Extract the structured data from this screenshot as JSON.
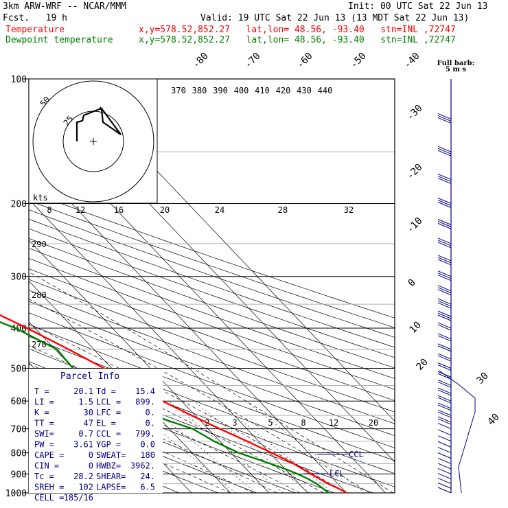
{
  "header": {
    "model": "3km ARW-WRF -- NCAR/MMM",
    "init": "Init: 00 UTC Sat 22 Jun 13",
    "fcst": "Fcst.   19 h",
    "valid": "Valid: 19 UTC Sat 22 Jun 13 (13 MDT Sat 22 Jun 13)",
    "temp_label": "Temperature",
    "dew_label": "Dewpoint temperature",
    "temp_loc": "x,y=578.52,852.27   lat,lon= 48.56, -93.40   stn=INL ,72747",
    "dew_loc": "x,y=578.52,852.27   lat,lon= 48.56, -93.40   stn=INL ,72747"
  },
  "colors": {
    "temperature": "#ff0000",
    "dewpoint": "#008000",
    "wind": "#000080",
    "text": "#000080"
  },
  "chart_data": {
    "type": "skew-t",
    "pressure_ticks": [
      "100",
      "200",
      "300",
      "400",
      "500",
      "600",
      "700",
      "800",
      "900",
      "1000"
    ],
    "isotherm_labels": [
      "-80",
      "-70",
      "-60",
      "-50",
      "-40",
      "-30",
      "-20",
      "-10",
      "0",
      "10",
      "20",
      "30",
      "40"
    ],
    "theta_labels": [
      "370",
      "380",
      "390",
      "400",
      "410",
      "420",
      "430",
      "440"
    ],
    "dry_adiabat_labels": [
      "290",
      "280",
      "270"
    ],
    "mixing_ratio_labels": [
      "2",
      "3",
      "5",
      "8",
      "12",
      "20"
    ],
    "hodograph": {
      "speed_unit": "kts",
      "speed_labels": [
        "8",
        "12",
        "16",
        "20",
        "24",
        "28",
        "32"
      ],
      "ring_labels": [
        "25",
        "50"
      ]
    },
    "full_barb": "Full barb:",
    "full_barb_value": "5 m s",
    "annotations": {
      "ccl": "CCL",
      "lcl": "LCL"
    },
    "temperature": [
      {
        "p": 1000,
        "t": 20.1
      },
      {
        "p": 975,
        "t": 19.0
      },
      {
        "p": 950,
        "t": 17.5
      },
      {
        "p": 925,
        "t": 16.5
      },
      {
        "p": 900,
        "t": 15.5
      },
      {
        "p": 875,
        "t": 14.5
      },
      {
        "p": 850,
        "t": 13.5
      },
      {
        "p": 800,
        "t": 10.5
      },
      {
        "p": 750,
        "t": 7.0
      },
      {
        "p": 700,
        "t": 3.0
      },
      {
        "p": 650,
        "t": -1.0
      },
      {
        "p": 600,
        "t": -5.0
      },
      {
        "p": 550,
        "t": -8.5
      },
      {
        "p": 500,
        "t": -12.0
      },
      {
        "p": 450,
        "t": -16.5
      },
      {
        "p": 400,
        "t": -22.0
      },
      {
        "p": 350,
        "t": -29.0
      },
      {
        "p": 300,
        "t": -37.0
      },
      {
        "p": 250,
        "t": -45.0
      },
      {
        "p": 200,
        "t": -54.0
      },
      {
        "p": 175,
        "t": -55.0
      },
      {
        "p": 150,
        "t": -54.0
      },
      {
        "p": 125,
        "t": -54.0
      },
      {
        "p": 100,
        "t": -47.0
      }
    ],
    "dewpoint": [
      {
        "p": 1000,
        "t": 15.4
      },
      {
        "p": 975,
        "t": 15.0
      },
      {
        "p": 950,
        "t": 14.5
      },
      {
        "p": 925,
        "t": 13.5
      },
      {
        "p": 900,
        "t": 12.0
      },
      {
        "p": 875,
        "t": 10.0
      },
      {
        "p": 850,
        "t": 7.5
      },
      {
        "p": 800,
        "t": 2.0
      },
      {
        "p": 750,
        "t": -1.5
      },
      {
        "p": 700,
        "t": -4.0
      },
      {
        "p": 650,
        "t": -11.0
      },
      {
        "p": 600,
        "t": -17.0
      },
      {
        "p": 550,
        "t": -22.0
      },
      {
        "p": 500,
        "t": -20.0
      },
      {
        "p": 450,
        "t": -19.5
      },
      {
        "p": 400,
        "t": -25.0
      },
      {
        "p": 350,
        "t": -35.0
      },
      {
        "p": 300,
        "t": -45.0
      },
      {
        "p": 250,
        "t": -56.0
      },
      {
        "p": 200,
        "t": -67.0
      },
      {
        "p": 175,
        "t": -77.0
      },
      {
        "p": 150,
        "t": -78.0
      },
      {
        "p": 125,
        "t": -79.0
      },
      {
        "p": 100,
        "t": -79.0
      }
    ]
  },
  "parcel_info": {
    "title": "Parcel Info",
    "rows": [
      {
        "l1": "T  =",
        "v1": "20.1",
        "l2": "Td =",
        "v2": "15.4"
      },
      {
        "l1": "LI =",
        "v1": "1.5",
        "l2": "LCL =",
        "v2": "899."
      },
      {
        "l1": "K  =",
        "v1": "30",
        "l2": "LFC =",
        "v2": "0."
      },
      {
        "l1": "TT =",
        "v1": "47",
        "l2": "EL  =",
        "v2": "0."
      },
      {
        "l1": "SWI=",
        "v1": "0.7",
        "l2": "CCL =",
        "v2": "799."
      },
      {
        "l1": "PW =",
        "v1": "3.61",
        "l2": "YGP =",
        "v2": "0.0"
      },
      {
        "l1": "CAPE =",
        "v1": "0",
        "l2": "SWEAT=",
        "v2": "180"
      },
      {
        "l1": "CIN =",
        "v1": "0",
        "l2": "HWBZ=",
        "v2": "3962."
      },
      {
        "l1": "Tc =",
        "v1": "28.2",
        "l2": "SHEAR=",
        "v2": "24."
      },
      {
        "l1": "SREH =",
        "v1": "102",
        "l2": "LAPSE=",
        "v2": "6.5"
      },
      {
        "l1": "CELL =",
        "v1": "185/16",
        "l2": "",
        "v2": ""
      }
    ]
  }
}
